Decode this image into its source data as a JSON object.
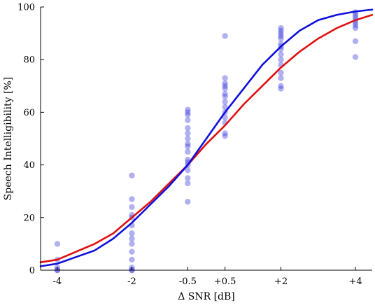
{
  "chart_data": {
    "type": "scatter",
    "xlabel": "Δ SNR [dB]",
    "ylabel": "Speech Intelligibility [%]",
    "xlim": [
      -4.45,
      4.45
    ],
    "ylim": [
      0,
      100
    ],
    "x_tick_values": [
      -4,
      -2,
      -0.5,
      0.5,
      2,
      4
    ],
    "x_tick_labels": [
      "-4",
      "-2",
      "-0.5",
      "+0.5",
      "+2",
      "+4"
    ],
    "y_tick_values": [
      0,
      20,
      40,
      60,
      80,
      100
    ],
    "y_tick_labels": [
      "0",
      "20",
      "40",
      "60",
      "80",
      "100"
    ],
    "grid": false,
    "legend": false,
    "point_color": "#3333dd",
    "points": [
      {
        "x": -4,
        "ys": [
          0,
          0,
          1,
          4,
          10
        ]
      },
      {
        "x": -2,
        "ys": [
          0,
          0,
          1,
          4,
          7,
          10,
          12,
          14,
          17,
          20,
          21,
          24,
          27,
          36
        ]
      },
      {
        "x": -0.5,
        "ys": [
          26,
          33,
          35,
          38,
          40,
          41,
          42,
          45,
          47,
          48,
          50,
          52,
          54,
          57,
          59,
          60,
          61
        ]
      },
      {
        "x": 0.5,
        "ys": [
          51,
          52,
          56,
          58,
          60,
          62,
          64,
          66,
          67,
          69,
          70,
          71,
          73,
          89
        ]
      },
      {
        "x": 2,
        "ys": [
          69,
          70,
          73,
          75,
          78,
          80,
          82,
          84,
          85,
          86,
          88,
          89,
          90,
          91,
          92
        ]
      },
      {
        "x": 4,
        "ys": [
          81,
          87,
          92,
          93,
          94,
          95,
          96,
          97,
          98
        ]
      }
    ],
    "series": [
      {
        "color": "#e01010",
        "x": [
          -4.45,
          -4,
          -3.5,
          -3,
          -2.5,
          -2,
          -1.5,
          -1,
          -0.5,
          0,
          0.5,
          1,
          1.5,
          2,
          2.5,
          3,
          3.5,
          4,
          4.45
        ],
        "values": [
          3,
          4,
          7,
          10,
          14,
          20,
          26,
          33,
          40,
          48,
          55,
          63,
          70,
          77,
          83,
          88,
          92,
          95,
          97
        ]
      },
      {
        "color": "#1010dd",
        "x": [
          -4.45,
          -4,
          -3.5,
          -3,
          -2.5,
          -2,
          -1.5,
          -1,
          -0.5,
          0,
          0.5,
          1,
          1.5,
          2,
          2.5,
          3,
          3.5,
          4,
          4.45
        ],
        "values": [
          1.5,
          2.5,
          5,
          7.5,
          12,
          18,
          25,
          32,
          40,
          50,
          60,
          69,
          78,
          85,
          91,
          95,
          97,
          98.3,
          99
        ]
      }
    ]
  }
}
